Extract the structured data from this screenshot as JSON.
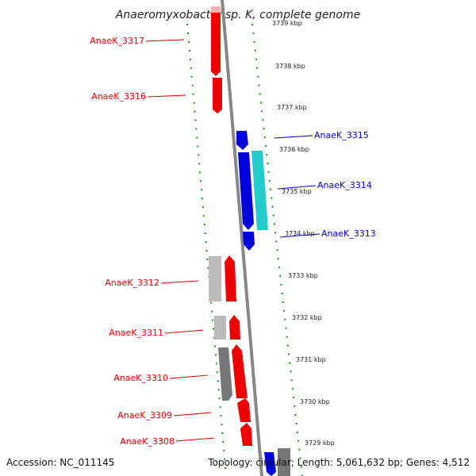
{
  "title": "Anaeromyxobacter sp. K, complete genome",
  "footer": {
    "accession": "Accession: NC_011145",
    "summary": "Topology: circular; Length: 5,061,632 bp; Genes: 4,512"
  },
  "colors": {
    "forward": "#ee0000",
    "reverse": "#0000dd",
    "rna": "#22cccc",
    "grey_light": "#bbbbbb",
    "grey_dark": "#777777",
    "ticks": "#119911",
    "backbone": "#888888"
  },
  "ticks": [
    "3739 kbp",
    "3738 kbp",
    "3737 kbp",
    "3736 kbp",
    "3735 kbp",
    "3734 kbp",
    "3733 kbp",
    "3732 kbp",
    "3731 kbp",
    "3730 kbp",
    "3729 kbp"
  ],
  "genes_left": [
    "AnaeK_3317",
    "AnaeK_3316",
    "AnaeK_3312",
    "AnaeK_3311",
    "AnaeK_3310",
    "AnaeK_3309",
    "AnaeK_3308"
  ],
  "genes_right": [
    "AnaeK_3315",
    "AnaeK_3314",
    "AnaeK_3313"
  ]
}
